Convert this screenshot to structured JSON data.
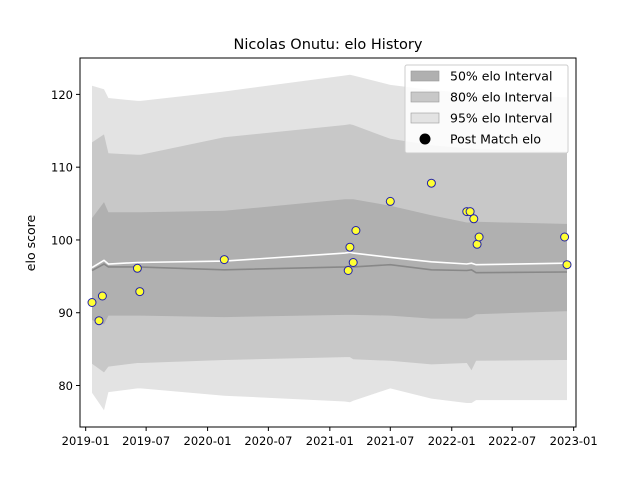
{
  "chart_data": {
    "type": "scatter",
    "title": "Nicolas Onutu: elo History",
    "xlabel": "",
    "ylabel": "elo score",
    "xlim": [
      "2018-12-15",
      "2023-01-08"
    ],
    "ylim": [
      74.3,
      125
    ],
    "x_ticks": [
      "2019-01",
      "2019-07",
      "2020-01",
      "2020-07",
      "2021-01",
      "2021-07",
      "2022-01",
      "2022-07",
      "2023-01"
    ],
    "y_ticks": [
      80,
      90,
      100,
      110,
      120
    ],
    "grid": false,
    "legend": {
      "placement": "top-right",
      "entries": [
        "50% elo Interval",
        "80% elo Interval",
        "95% elo Interval",
        "Post Match elo"
      ]
    },
    "colors": {
      "band50": "#b0b0b0",
      "band80": "#c8c8c8",
      "band95": "#e3e3e3",
      "mean_line": "#ffffff",
      "median_line": "#888888",
      "point_fill": "#ffff33",
      "point_edge": "#2222aa"
    },
    "bands": {
      "x": [
        "2019-01-20",
        "2019-02-25",
        "2019-03-10",
        "2019-06-05",
        "2019-06-15",
        "2020-02-20",
        "2021-02-15",
        "2021-03-02",
        "2021-03-12",
        "2021-07-01",
        "2021-11-01",
        "2022-02-15",
        "2022-03-01",
        "2022-03-15",
        "2022-12-05",
        "2022-12-12"
      ],
      "p95_upper": [
        121.2,
        120.7,
        119.5,
        119.1,
        119.1,
        120.4,
        122.6,
        122.7,
        122.6,
        121.3,
        120.6,
        120.2,
        120.2,
        120.1,
        119.6,
        119.6
      ],
      "p80_upper": [
        113.4,
        114.5,
        111.9,
        111.7,
        111.7,
        114.1,
        115.8,
        115.9,
        115.8,
        113.9,
        113.0,
        112.6,
        112.6,
        112.5,
        112.2,
        112.2
      ],
      "p50_upper": [
        103.0,
        105.2,
        103.8,
        103.8,
        103.8,
        104.0,
        105.6,
        105.6,
        105.6,
        104.7,
        103.4,
        102.4,
        102.4,
        102.5,
        102.2,
        102.2
      ],
      "p50_lower": [
        89.0,
        88.4,
        89.6,
        89.6,
        89.6,
        89.4,
        89.7,
        89.7,
        89.7,
        89.6,
        89.2,
        89.2,
        89.4,
        89.8,
        90.2,
        90.2
      ],
      "p80_lower": [
        83.0,
        81.8,
        82.6,
        83.1,
        83.1,
        83.5,
        83.9,
        83.9,
        83.6,
        83.4,
        82.9,
        83.1,
        82.1,
        83.4,
        83.5,
        83.5
      ],
      "p95_lower": [
        79.0,
        76.6,
        79.1,
        79.6,
        79.6,
        78.6,
        77.8,
        77.7,
        77.9,
        79.6,
        78.2,
        77.6,
        77.6,
        78.0,
        78.0,
        78.0
      ]
    },
    "mean_line": {
      "x": [
        "2019-01-20",
        "2019-02-25",
        "2019-03-10",
        "2019-06-05",
        "2020-02-20",
        "2021-02-15",
        "2021-03-02",
        "2021-03-12",
        "2021-07-01",
        "2021-11-01",
        "2022-02-15",
        "2022-03-01",
        "2022-03-15",
        "2022-12-05",
        "2022-12-12"
      ],
      "y": [
        96.2,
        97.2,
        96.7,
        96.9,
        97.1,
        98.2,
        98.3,
        98.2,
        97.6,
        97.0,
        96.7,
        96.8,
        96.6,
        96.8,
        96.8
      ]
    },
    "median_line": {
      "x": [
        "2019-01-20",
        "2019-02-25",
        "2019-03-10",
        "2019-06-05",
        "2020-02-20",
        "2021-02-15",
        "2021-03-02",
        "2021-03-12",
        "2021-07-01",
        "2021-11-01",
        "2022-02-15",
        "2022-03-01",
        "2022-03-15",
        "2022-12-05",
        "2022-12-12"
      ],
      "y": [
        95.8,
        96.7,
        96.3,
        96.3,
        95.9,
        96.3,
        96.4,
        96.3,
        96.6,
        95.9,
        95.8,
        95.9,
        95.5,
        95.6,
        95.6
      ]
    },
    "series": [
      {
        "name": "Post Match elo",
        "points": [
          {
            "x": "2019-01-20",
            "y": 91.4
          },
          {
            "x": "2019-02-10",
            "y": 88.9
          },
          {
            "x": "2019-02-20",
            "y": 92.3
          },
          {
            "x": "2019-06-05",
            "y": 96.1
          },
          {
            "x": "2019-06-12",
            "y": 92.9
          },
          {
            "x": "2020-02-20",
            "y": 97.3
          },
          {
            "x": "2021-02-25",
            "y": 95.8
          },
          {
            "x": "2021-03-02",
            "y": 99.0
          },
          {
            "x": "2021-03-12",
            "y": 96.9
          },
          {
            "x": "2021-03-20",
            "y": 101.3
          },
          {
            "x": "2021-07-01",
            "y": 105.3
          },
          {
            "x": "2021-11-01",
            "y": 107.8
          },
          {
            "x": "2022-02-15",
            "y": 103.9
          },
          {
            "x": "2022-02-25",
            "y": 103.9
          },
          {
            "x": "2022-03-08",
            "y": 102.9
          },
          {
            "x": "2022-03-18",
            "y": 99.4
          },
          {
            "x": "2022-03-24",
            "y": 100.4
          },
          {
            "x": "2022-12-05",
            "y": 100.4
          },
          {
            "x": "2022-12-12",
            "y": 96.6
          }
        ]
      }
    ]
  }
}
